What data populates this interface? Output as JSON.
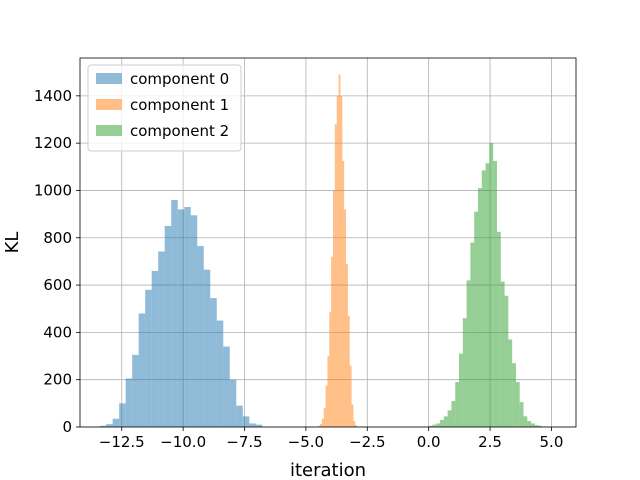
{
  "chart_data": {
    "type": "bar",
    "title": "",
    "xlabel": "iteration",
    "ylabel": "KL",
    "xlim": [
      -14.2,
      6.0
    ],
    "ylim": [
      0,
      1560
    ],
    "xticks": [
      -12.5,
      -10.0,
      -7.5,
      -5.0,
      -2.5,
      0.0,
      2.5,
      5.0
    ],
    "xtick_labels": [
      "−12.5",
      "−10.0",
      "−7.5",
      "−5.0",
      "−2.5",
      "0.0",
      "2.5",
      "5.0"
    ],
    "yticks": [
      0,
      200,
      400,
      600,
      800,
      1000,
      1200,
      1400
    ],
    "ytick_labels": [
      "0",
      "200",
      "400",
      "600",
      "800",
      "1000",
      "1200",
      "1400"
    ],
    "grid": true,
    "legend_position": "upper-left",
    "series": [
      {
        "name": "component 0",
        "color": "#1f77b4",
        "alpha": 0.5,
        "bin_start": -13.4,
        "bin_width": 0.265,
        "counts": [
          5,
          12,
          35,
          100,
          205,
          305,
          480,
          580,
          660,
          742,
          850,
          960,
          920,
          930,
          895,
          765,
          665,
          545,
          450,
          340,
          200,
          90,
          45,
          15,
          10
        ]
      },
      {
        "name": "component 1",
        "color": "#ff7f0e",
        "alpha": 0.5,
        "bin_start": -4.5,
        "bin_width": 0.0755,
        "counts": [
          5,
          12,
          35,
          80,
          175,
          300,
          485,
          720,
          1000,
          1280,
          1400,
          1490,
          1400,
          1125,
          920,
          690,
          470,
          260,
          95,
          25,
          8
        ]
      },
      {
        "name": "component 2",
        "color": "#2ca02c",
        "alpha": 0.5,
        "bin_start": 0.0,
        "bin_width": 0.1545,
        "counts": [
          5,
          10,
          15,
          30,
          45,
          70,
          110,
          190,
          310,
          460,
          620,
          780,
          910,
          1010,
          1085,
          1115,
          1200,
          1125,
          825,
          615,
          555,
          370,
          270,
          190,
          105,
          45,
          25,
          15,
          8,
          5
        ]
      }
    ]
  }
}
